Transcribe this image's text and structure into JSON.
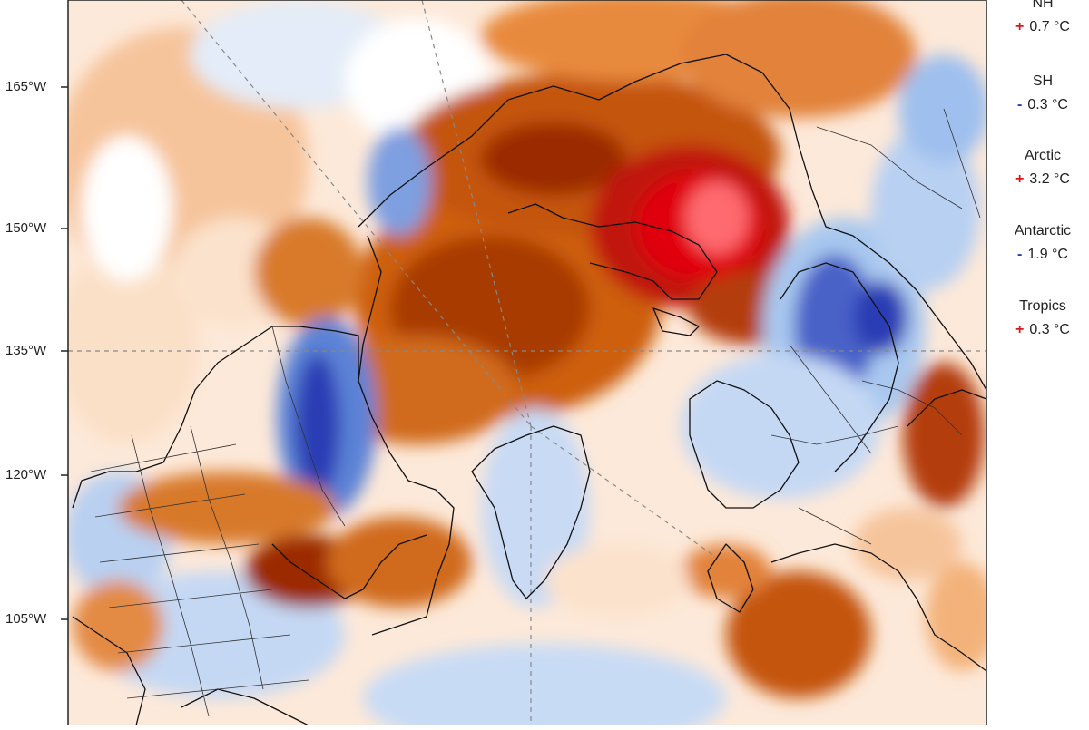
{
  "map": {
    "projection": "north polar stereographic",
    "colors": {
      "strong_warm": "#e00010",
      "warm_dark": "#9b2a00",
      "warm": "#cd5e0a",
      "warm_light": "#f3b27a",
      "warm_faint": "#fbe2cc",
      "neutral": "#ffffff",
      "cool_faint": "#dbe8f8",
      "cool_light": "#a9c8ef",
      "cool": "#5c82d6",
      "cool_dark": "#2a3db4",
      "coastline": "#111111",
      "graticule": "#888888"
    },
    "longitude_labels": [
      "165°W",
      "150°W",
      "135°W",
      "120°W",
      "105°W"
    ]
  },
  "legend": {
    "items": [
      {
        "name": "NH",
        "sign": "+",
        "value": "0.7 °C"
      },
      {
        "name": "SH",
        "sign": "-",
        "value": "0.3 °C"
      },
      {
        "name": "Arctic",
        "sign": "+",
        "value": "3.2 °C"
      },
      {
        "name": "Antarctic",
        "sign": "-",
        "value": "1.9 °C"
      },
      {
        "name": "Tropics",
        "sign": "+",
        "value": "0.3 °C"
      }
    ]
  }
}
